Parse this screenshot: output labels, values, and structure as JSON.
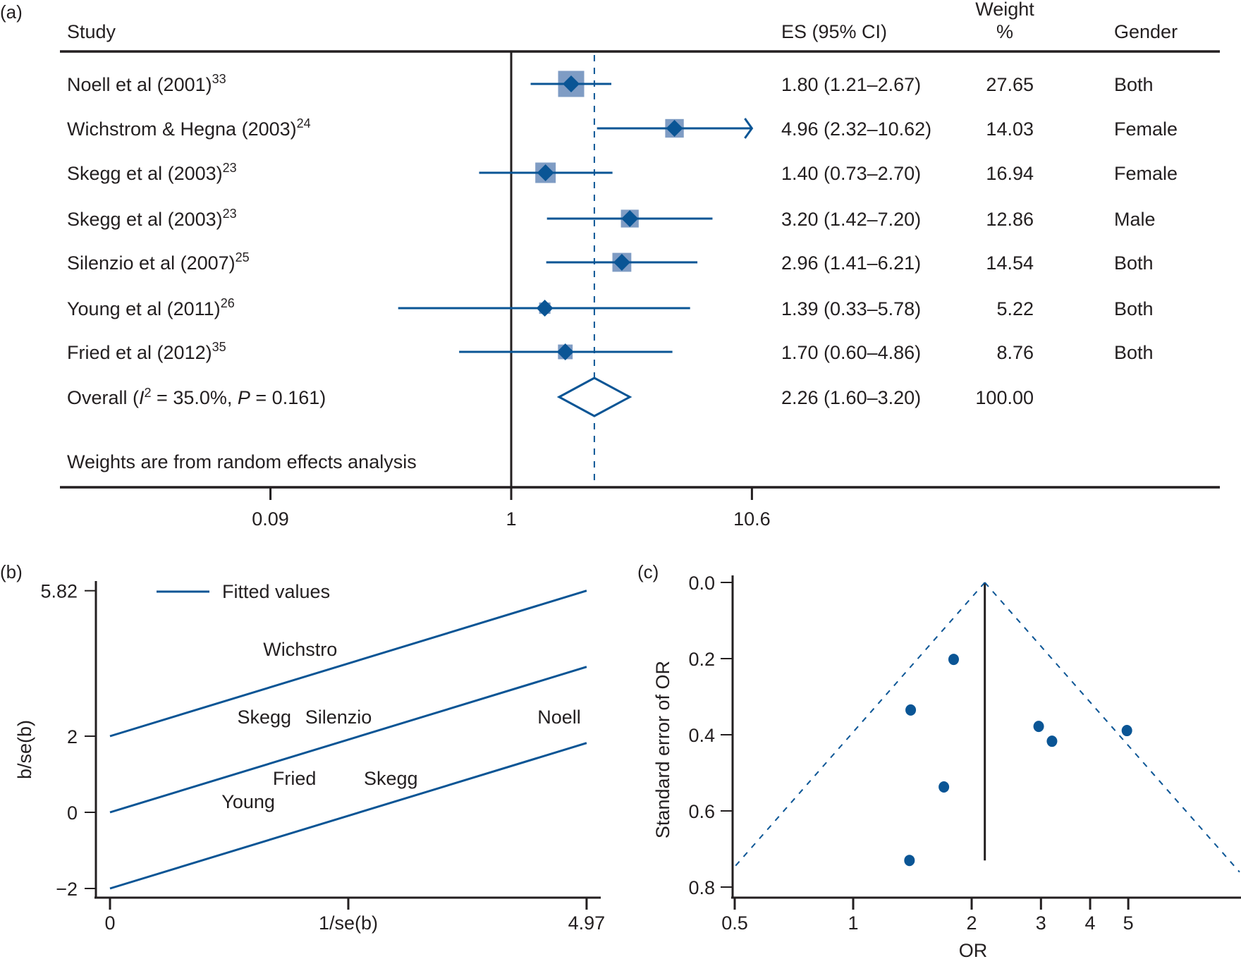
{
  "colors": {
    "ink": "#231f20",
    "series": "#0a5595",
    "box_fill": "#7f9cc4"
  },
  "chart_data": [
    {
      "panel": "(a)",
      "type": "forest",
      "xscale": "log",
      "x_ticks": [
        {
          "value": 0.0943,
          "label": "0.09"
        },
        {
          "value": 1,
          "label": "1"
        },
        {
          "value": 10.6,
          "label": "10.6"
        }
      ],
      "xlim": [
        0.0943,
        10.6
      ],
      "null_line": 1,
      "overall_line": 2.26,
      "columns": {
        "study": "Study",
        "es": "ES (95% CI)",
        "weight_line1": "Weight",
        "weight_line2": "%",
        "gender": "Gender"
      },
      "studies": [
        {
          "name": "Noell et al (2001)",
          "ref": "33",
          "es": 1.8,
          "lo": 1.21,
          "hi": 2.67,
          "es_text": "1.80 (1.21–2.67)",
          "weight": 27.65,
          "weight_text": "27.65",
          "gender": "Both"
        },
        {
          "name": "Wichstrom & Hegna (2003)",
          "ref": "24",
          "es": 4.96,
          "lo": 2.32,
          "hi": 10.62,
          "es_text": "4.96 (2.32–10.62)",
          "weight": 14.03,
          "weight_text": "14.03",
          "gender": "Female"
        },
        {
          "name": "Skegg et al (2003)",
          "ref": "23",
          "es": 1.4,
          "lo": 0.73,
          "hi": 2.7,
          "es_text": "1.40 (0.73–2.70)",
          "weight": 16.94,
          "weight_text": "16.94",
          "gender": "Female"
        },
        {
          "name": "Skegg et al (2003)",
          "ref": "23",
          "es": 3.2,
          "lo": 1.42,
          "hi": 7.2,
          "es_text": "3.20 (1.42–7.20)",
          "weight": 12.86,
          "weight_text": "12.86",
          "gender": "Male"
        },
        {
          "name": "Silenzio et al (2007)",
          "ref": "25",
          "es": 2.96,
          "lo": 1.41,
          "hi": 6.21,
          "es_text": "2.96 (1.41–6.21)",
          "weight": 14.54,
          "weight_text": "14.54",
          "gender": "Both"
        },
        {
          "name": "Young et al (2011)",
          "ref": "26",
          "es": 1.39,
          "lo": 0.33,
          "hi": 5.78,
          "es_text": "1.39 (0.33–5.78)",
          "weight": 5.22,
          "weight_text": "5.22",
          "gender": "Both"
        },
        {
          "name": "Fried et al (2012)",
          "ref": "35",
          "es": 1.7,
          "lo": 0.6,
          "hi": 4.86,
          "es_text": "1.70 (0.60–4.86)",
          "weight": 8.76,
          "weight_text": "8.76",
          "gender": "Both"
        }
      ],
      "overall": {
        "label_prefix": "Overall (",
        "i_symbol": "I",
        "i_sup": "2",
        "i_value": " = 35.0%, ",
        "p_symbol": "P",
        "p_value": " = 0.161)",
        "es": 2.26,
        "lo": 1.6,
        "hi": 3.2,
        "es_text": "2.26 (1.60–3.20)",
        "weight_text": "100.00"
      },
      "footnote": "Weights are from random effects analysis"
    },
    {
      "panel": "(b)",
      "type": "line",
      "title": "",
      "xlabel": "1/se(b)",
      "ylabel": "b/se(b)",
      "xlim": [
        0,
        4.97
      ],
      "ylim": [
        -2,
        5.82
      ],
      "x_ticks": [
        {
          "value": 0,
          "label": "0"
        },
        {
          "value": 2.485,
          "label": ""
        },
        {
          "value": 4.97,
          "label": "4.97"
        }
      ],
      "y_ticks": [
        {
          "value": -2,
          "label": "−2"
        },
        {
          "value": 0,
          "label": "0"
        },
        {
          "value": 2,
          "label": "2"
        },
        {
          "value": 5.82,
          "label": "5.82"
        }
      ],
      "legend": {
        "label": "Fitted values",
        "position": "top-left"
      },
      "series": [
        {
          "name": "Fitted values (upper)",
          "x": [
            0,
            4.97
          ],
          "y": [
            2.0,
            5.82
          ]
        },
        {
          "name": "Fitted values (centre)",
          "x": [
            0,
            4.97
          ],
          "y": [
            0.0,
            3.82
          ]
        },
        {
          "name": "Fitted values (lower)",
          "x": [
            0,
            4.97
          ],
          "y": [
            -2.0,
            1.82
          ]
        }
      ],
      "point_labels": [
        {
          "text": "Wichstro",
          "x": 2.37,
          "y": 4.3
        },
        {
          "text": "Skegg",
          "x": 1.89,
          "y": 2.52
        },
        {
          "text": "Silenzio",
          "x": 2.73,
          "y": 2.52
        },
        {
          "text": "Noell",
          "x": 4.91,
          "y": 2.52
        },
        {
          "text": "Fried",
          "x": 2.15,
          "y": 0.91
        },
        {
          "text": "Skegg",
          "x": 3.21,
          "y": 0.91
        },
        {
          "text": "Young",
          "x": 1.72,
          "y": 0.3
        }
      ]
    },
    {
      "panel": "(c)",
      "type": "scatter",
      "title": "",
      "xlabel": "OR",
      "ylabel": "Standard error of OR",
      "xscale": "log",
      "yaxis_reversed": true,
      "xlim": [
        0.5,
        10.5
      ],
      "ylim": [
        0,
        0.8
      ],
      "x_ticks": [
        {
          "value": 0.5,
          "label": "0.5"
        },
        {
          "value": 1,
          "label": "1"
        },
        {
          "value": 2,
          "label": "2"
        },
        {
          "value": 3,
          "label": "3"
        },
        {
          "value": 4,
          "label": "4"
        },
        {
          "value": 5,
          "label": "5"
        }
      ],
      "y_ticks": [
        {
          "value": 0.0,
          "label": "0.0"
        },
        {
          "value": 0.2,
          "label": "0.2"
        },
        {
          "value": 0.4,
          "label": "0.4"
        },
        {
          "value": 0.6,
          "label": "0.6"
        },
        {
          "value": 0.8,
          "label": "0.8"
        }
      ],
      "pooled_or": 2.16,
      "pooled_line_se_max": 0.73,
      "funnel_se_max": 0.8,
      "points": [
        {
          "or": 1.8,
          "se": 0.202
        },
        {
          "or": 1.4,
          "se": 0.335
        },
        {
          "or": 2.96,
          "se": 0.378
        },
        {
          "or": 3.2,
          "se": 0.417
        },
        {
          "or": 4.96,
          "se": 0.389
        },
        {
          "or": 1.7,
          "se": 0.537
        },
        {
          "or": 1.39,
          "se": 0.73
        }
      ]
    }
  ]
}
